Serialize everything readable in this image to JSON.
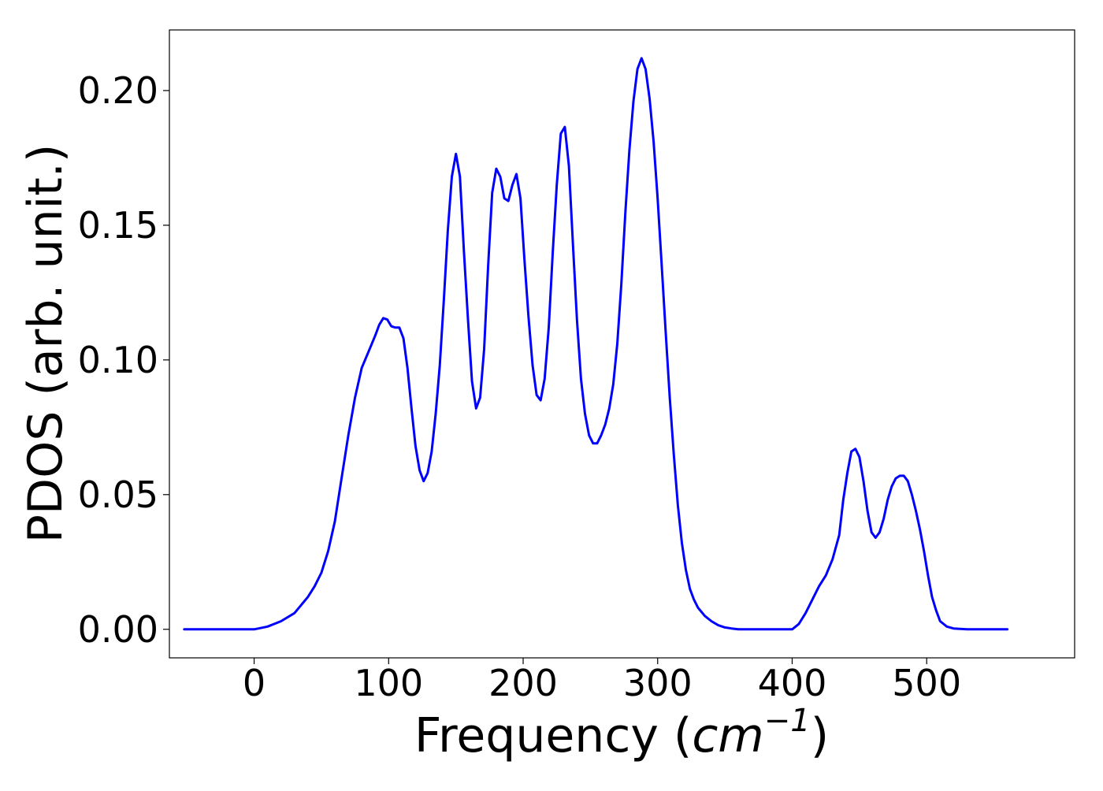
{
  "chart_data": {
    "type": "line",
    "title": "",
    "xlabel": "Frequency",
    "xlabel_unit": "cm",
    "xlabel_exponent": "−1",
    "ylabel": "PDOS (arb. unit.)",
    "xlim": [
      -63,
      610
    ],
    "ylim": [
      -0.0106,
      0.2225
    ],
    "xticks": [
      0,
      100,
      200,
      300,
      400,
      500
    ],
    "xtick_labels": [
      "0",
      "100",
      "200",
      "300",
      "400",
      "500"
    ],
    "yticks": [
      0.0,
      0.05,
      0.1,
      0.15,
      0.2
    ],
    "ytick_labels": [
      "0.00",
      "0.05",
      "0.10",
      "0.15",
      "0.20"
    ],
    "grid": false,
    "legend": "none",
    "series": [
      {
        "color": "#0000ff",
        "x": [
          -52,
          0,
          10,
          20,
          30,
          40,
          45,
          50,
          55,
          60,
          65,
          70,
          75,
          80,
          85,
          90,
          93,
          96,
          99,
          102,
          105,
          108,
          111,
          114,
          117,
          120,
          123,
          126,
          129,
          132,
          135,
          138,
          141,
          144,
          147,
          150,
          153,
          156,
          159,
          162,
          165,
          168,
          171,
          174,
          177,
          180,
          183,
          186,
          189,
          192,
          195,
          198,
          201,
          204,
          207,
          210,
          213,
          216,
          219,
          222,
          225,
          228,
          231,
          234,
          237,
          240,
          243,
          246,
          249,
          252,
          255,
          258,
          261,
          264,
          267,
          270,
          273,
          276,
          279,
          282,
          285,
          288,
          291,
          294,
          297,
          300,
          303,
          306,
          309,
          312,
          315,
          318,
          321,
          324,
          327,
          330,
          335,
          340,
          345,
          350,
          355,
          360,
          370,
          380,
          390,
          400,
          405,
          410,
          415,
          420,
          425,
          430,
          435,
          438,
          441,
          444,
          447,
          450,
          453,
          456,
          459,
          462,
          465,
          468,
          471,
          474,
          477,
          480,
          483,
          486,
          489,
          492,
          495,
          498,
          501,
          504,
          507,
          510,
          515,
          520,
          530,
          560
        ],
        "y": [
          0.0,
          0.0,
          0.001,
          0.003,
          0.006,
          0.012,
          0.016,
          0.021,
          0.029,
          0.04,
          0.056,
          0.072,
          0.086,
          0.097,
          0.103,
          0.109,
          0.113,
          0.1155,
          0.115,
          0.1125,
          0.112,
          0.112,
          0.108,
          0.097,
          0.082,
          0.068,
          0.059,
          0.055,
          0.058,
          0.066,
          0.08,
          0.098,
          0.122,
          0.148,
          0.168,
          0.1765,
          0.168,
          0.14,
          0.115,
          0.092,
          0.082,
          0.086,
          0.104,
          0.135,
          0.162,
          0.171,
          0.168,
          0.16,
          0.159,
          0.165,
          0.169,
          0.16,
          0.137,
          0.116,
          0.098,
          0.087,
          0.085,
          0.093,
          0.112,
          0.14,
          0.165,
          0.184,
          0.1865,
          0.172,
          0.143,
          0.115,
          0.093,
          0.08,
          0.072,
          0.069,
          0.069,
          0.072,
          0.076,
          0.082,
          0.091,
          0.106,
          0.128,
          0.155,
          0.178,
          0.196,
          0.208,
          0.212,
          0.208,
          0.197,
          0.181,
          0.16,
          0.135,
          0.11,
          0.086,
          0.065,
          0.046,
          0.032,
          0.022,
          0.015,
          0.011,
          0.008,
          0.005,
          0.003,
          0.0015,
          0.0007,
          0.0003,
          0.0,
          0.0,
          0.0,
          0.0,
          0.0,
          0.002,
          0.006,
          0.011,
          0.016,
          0.02,
          0.026,
          0.035,
          0.048,
          0.058,
          0.066,
          0.067,
          0.064,
          0.055,
          0.044,
          0.036,
          0.034,
          0.036,
          0.041,
          0.048,
          0.053,
          0.056,
          0.057,
          0.057,
          0.055,
          0.05,
          0.044,
          0.037,
          0.029,
          0.02,
          0.012,
          0.007,
          0.003,
          0.001,
          0.0003,
          0.0,
          0.0
        ]
      }
    ]
  }
}
